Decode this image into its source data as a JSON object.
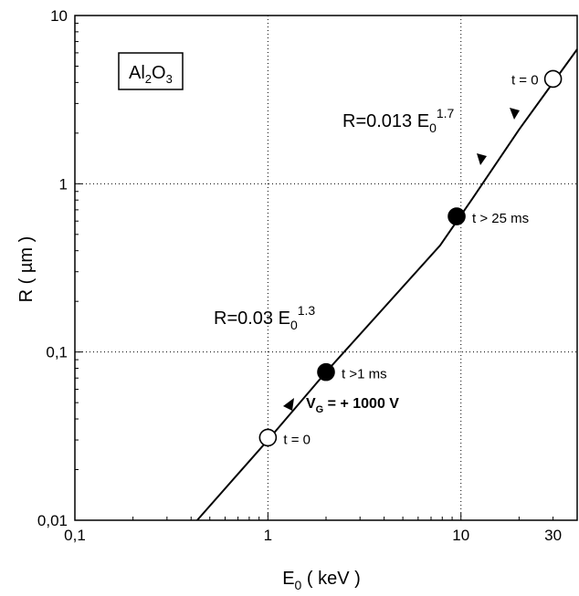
{
  "chart_data": {
    "type": "line",
    "x_scale": "log",
    "y_scale": "log",
    "xlim": [
      0.1,
      40
    ],
    "ylim": [
      0.01,
      10
    ],
    "grid": true,
    "x_ticks": [
      {
        "value": 0.1,
        "label": "0,1"
      },
      {
        "value": 1,
        "label": "1"
      },
      {
        "value": 10,
        "label": "10"
      },
      {
        "value": 30,
        "label": "30"
      }
    ],
    "y_ticks": [
      {
        "value": 0.01,
        "label": "0,01"
      },
      {
        "value": 0.1,
        "label": "0,1"
      },
      {
        "value": 1,
        "label": "1"
      },
      {
        "value": 10,
        "label": "10"
      }
    ],
    "xlabel": {
      "main": "E",
      "sub": "0",
      "rest": " ( keV )"
    },
    "ylabel": "R ( µm )",
    "material_label": {
      "main": "Al",
      "sub1": "2",
      "mid": "O",
      "sub2": "3"
    },
    "series": [
      {
        "x": [
          0.43,
          1.0,
          2.0,
          7.8,
          11.5,
          20.0,
          40.0
        ],
        "y": [
          0.01,
          0.03,
          0.076,
          0.43,
          0.82,
          2.1,
          6.3
        ]
      }
    ],
    "fits": [
      {
        "prefix": "R=0.03 E",
        "sub": "0",
        "sup": "1.3"
      },
      {
        "prefix": "R=0.013 E",
        "sub": "0",
        "sup": "1.7"
      }
    ],
    "points": [
      {
        "x": 1.0,
        "y": 0.031,
        "filled": false,
        "label": "t = 0"
      },
      {
        "x": 2.0,
        "y": 0.076,
        "filled": true,
        "label": "t >1 ms"
      },
      {
        "x": 9.5,
        "y": 0.64,
        "filled": true,
        "label": "t > 25 ms"
      },
      {
        "x": 30.0,
        "y": 4.2,
        "filled": false,
        "label": "t = 0"
      }
    ],
    "voltage_label": {
      "main": "V",
      "sub": "G",
      "rest": " = + 1000 V"
    }
  }
}
